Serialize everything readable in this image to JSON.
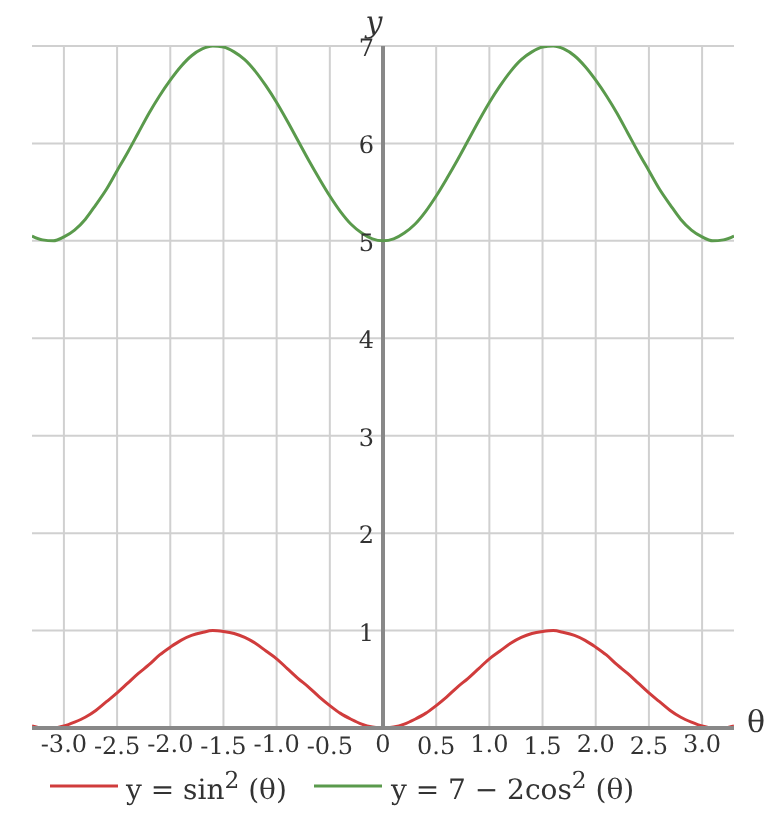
{
  "chart_data": {
    "type": "line",
    "xlabel": "θ",
    "ylabel": "y",
    "x": [
      -3.3,
      -3.2,
      -3.1,
      -3.0,
      -2.9,
      -2.8,
      -2.7,
      -2.6,
      -2.5,
      -2.4,
      -2.3,
      -2.2,
      -2.1,
      -2.0,
      -1.9,
      -1.8,
      -1.7,
      -1.6,
      -1.5,
      -1.4,
      -1.3,
      -1.2,
      -1.1,
      -1.0,
      -0.9,
      -0.8,
      -0.7,
      -0.6,
      -0.5,
      -0.4,
      -0.3,
      -0.2,
      -0.1,
      0,
      0.1,
      0.2,
      0.3,
      0.4,
      0.5,
      0.6,
      0.7,
      0.8,
      0.9,
      1.0,
      1.1,
      1.2,
      1.3,
      1.4,
      1.5,
      1.6,
      1.7,
      1.8,
      1.9,
      2.0,
      2.1,
      2.2,
      2.3,
      2.4,
      2.5,
      2.6,
      2.7,
      2.8,
      2.9,
      3.0,
      3.1,
      3.2,
      3.3
    ],
    "series": [
      {
        "name": "y = sin$^{2}$ (θ)",
        "color": "#d03c3c",
        "values": [
          0.02,
          0.0,
          0.0,
          0.02,
          0.06,
          0.11,
          0.18,
          0.27,
          0.36,
          0.46,
          0.56,
          0.65,
          0.75,
          0.83,
          0.9,
          0.95,
          0.98,
          1.0,
          0.99,
          0.97,
          0.93,
          0.87,
          0.79,
          0.71,
          0.61,
          0.51,
          0.42,
          0.32,
          0.23,
          0.15,
          0.09,
          0.04,
          0.01,
          0.0,
          0.01,
          0.04,
          0.09,
          0.15,
          0.23,
          0.32,
          0.42,
          0.51,
          0.61,
          0.71,
          0.79,
          0.87,
          0.93,
          0.97,
          0.99,
          1.0,
          0.98,
          0.95,
          0.9,
          0.83,
          0.75,
          0.65,
          0.56,
          0.46,
          0.36,
          0.27,
          0.18,
          0.11,
          0.06,
          0.02,
          0.0,
          0.0,
          0.02
        ]
      },
      {
        "name": "y = 7 − 2cos$^{2}$ (θ)",
        "color": "#5a9a4c",
        "values": [
          5.05,
          5.01,
          5.0,
          5.04,
          5.11,
          5.22,
          5.37,
          5.53,
          5.72,
          5.91,
          6.11,
          6.31,
          6.49,
          6.65,
          6.79,
          6.9,
          6.97,
          7.0,
          6.99,
          6.94,
          6.86,
          6.74,
          6.59,
          6.42,
          6.23,
          6.03,
          5.83,
          5.64,
          5.46,
          5.3,
          5.17,
          5.08,
          5.02,
          5.0,
          5.02,
          5.08,
          5.17,
          5.3,
          5.46,
          5.64,
          5.83,
          6.03,
          6.23,
          6.42,
          6.59,
          6.74,
          6.86,
          6.94,
          6.99,
          7.0,
          6.97,
          6.9,
          6.79,
          6.65,
          6.49,
          6.31,
          6.11,
          5.91,
          5.72,
          5.53,
          5.37,
          5.22,
          5.11,
          5.04,
          5.0,
          5.01,
          5.05
        ]
      }
    ],
    "xlim": [
      -3.3,
      3.3
    ],
    "ylim": [
      0,
      7
    ],
    "xticks": [
      {
        "value": -3,
        "label": "-3.0"
      },
      {
        "value": -2,
        "label": "-2.0"
      },
      {
        "value": -1,
        "label": "-1.0"
      },
      0,
      {
        "value": 1,
        "label": "1.0"
      },
      {
        "value": 2,
        "label": "2.0"
      },
      {
        "value": 3,
        "label": "3.0"
      }
    ],
    "x2lim": [
      -3.3,
      3.3
    ],
    "x2ticks": [
      -2.5,
      -1.5,
      -0.5,
      0.5,
      1.5,
      2.5
    ],
    "yticks": [
      1,
      2,
      3,
      4,
      5,
      6,
      7
    ],
    "grid": true,
    "legend": "bottom left",
    "marker": "none",
    "line_style": "solid"
  }
}
